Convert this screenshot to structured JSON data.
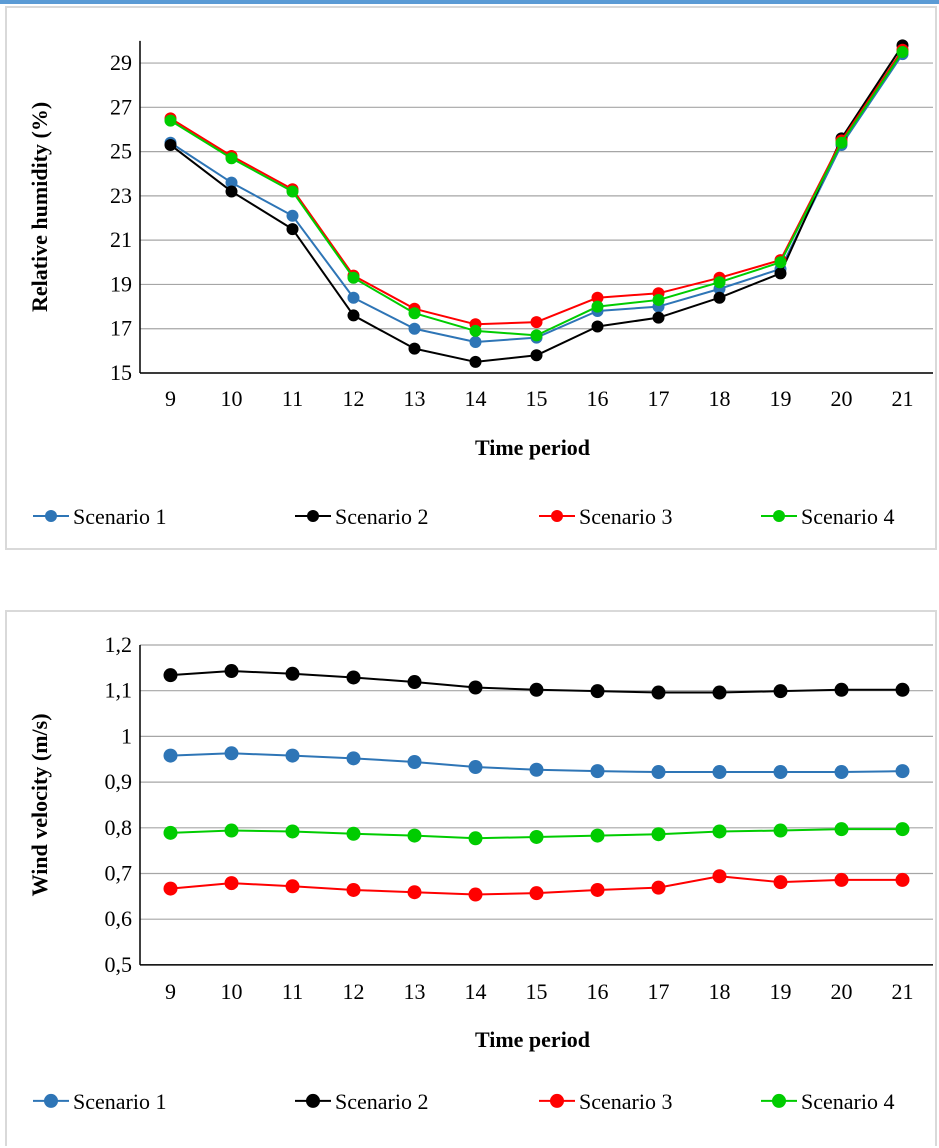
{
  "colors": {
    "frame_accent": "#5b9bd5",
    "grid": "#a6a6a6",
    "series": [
      "#2e75b6",
      "#000000",
      "#ff0000",
      "#00cc00"
    ]
  },
  "chart_data": [
    {
      "type": "line",
      "xlabel": "Time period",
      "ylabel": "Relative humidity (%)",
      "x": [
        9,
        10,
        11,
        12,
        13,
        14,
        15,
        16,
        17,
        18,
        19,
        20,
        21
      ],
      "ylim": [
        15,
        30
      ],
      "yticks": [
        15,
        17,
        19,
        21,
        23,
        25,
        27,
        29
      ],
      "ytick_labels": [
        "15",
        "17",
        "19",
        "21",
        "23",
        "25",
        "27",
        "29"
      ],
      "grid": true,
      "legend_position": "bottom",
      "series": [
        {
          "name": "Scenario 1",
          "color": "#2e75b6",
          "values": [
            25.4,
            23.6,
            22.1,
            18.4,
            17.0,
            16.4,
            16.6,
            17.8,
            18.0,
            18.8,
            19.7,
            25.3,
            29.4
          ]
        },
        {
          "name": "Scenario 2",
          "color": "#000000",
          "values": [
            25.3,
            23.2,
            21.5,
            17.6,
            16.1,
            15.5,
            15.8,
            17.1,
            17.5,
            18.4,
            19.5,
            25.6,
            29.8
          ]
        },
        {
          "name": "Scenario 3",
          "color": "#ff0000",
          "values": [
            26.5,
            24.8,
            23.3,
            19.4,
            17.9,
            17.2,
            17.3,
            18.4,
            18.6,
            19.3,
            20.1,
            25.5,
            29.6
          ]
        },
        {
          "name": "Scenario 4",
          "color": "#00cc00",
          "values": [
            26.4,
            24.7,
            23.2,
            19.3,
            17.7,
            16.9,
            16.7,
            18.0,
            18.3,
            19.1,
            20.0,
            25.4,
            29.5
          ]
        }
      ]
    },
    {
      "type": "line",
      "xlabel": "Time period",
      "ylabel": "Wind velocity (m/s)",
      "x": [
        9,
        10,
        11,
        12,
        13,
        14,
        15,
        16,
        17,
        18,
        19,
        20,
        21
      ],
      "ylim": [
        0.5,
        1.2
      ],
      "yticks": [
        0.5,
        0.6,
        0.7,
        0.8,
        0.9,
        1.0,
        1.1,
        1.2
      ],
      "ytick_labels": [
        "0,5",
        "0,6",
        "0,7",
        "0,8",
        "0,9",
        "1",
        "1,1",
        "1,2"
      ],
      "grid": true,
      "legend_position": "bottom",
      "series": [
        {
          "name": "Scenario 1",
          "color": "#2e75b6",
          "values": [
            0.958,
            0.963,
            0.958,
            0.952,
            0.944,
            0.933,
            0.927,
            0.924,
            0.922,
            0.922,
            0.922,
            0.922,
            0.924
          ]
        },
        {
          "name": "Scenario 2",
          "color": "#000000",
          "values": [
            1.134,
            1.143,
            1.137,
            1.129,
            1.119,
            1.107,
            1.102,
            1.099,
            1.096,
            1.096,
            1.099,
            1.102,
            1.102
          ]
        },
        {
          "name": "Scenario 3",
          "color": "#ff0000",
          "values": [
            0.667,
            0.679,
            0.672,
            0.664,
            0.659,
            0.654,
            0.657,
            0.664,
            0.669,
            0.694,
            0.681,
            0.686,
            0.686
          ]
        },
        {
          "name": "Scenario 4",
          "color": "#00cc00",
          "values": [
            0.789,
            0.794,
            0.792,
            0.787,
            0.783,
            0.777,
            0.78,
            0.783,
            0.786,
            0.792,
            0.794,
            0.797,
            0.797
          ]
        }
      ]
    }
  ]
}
